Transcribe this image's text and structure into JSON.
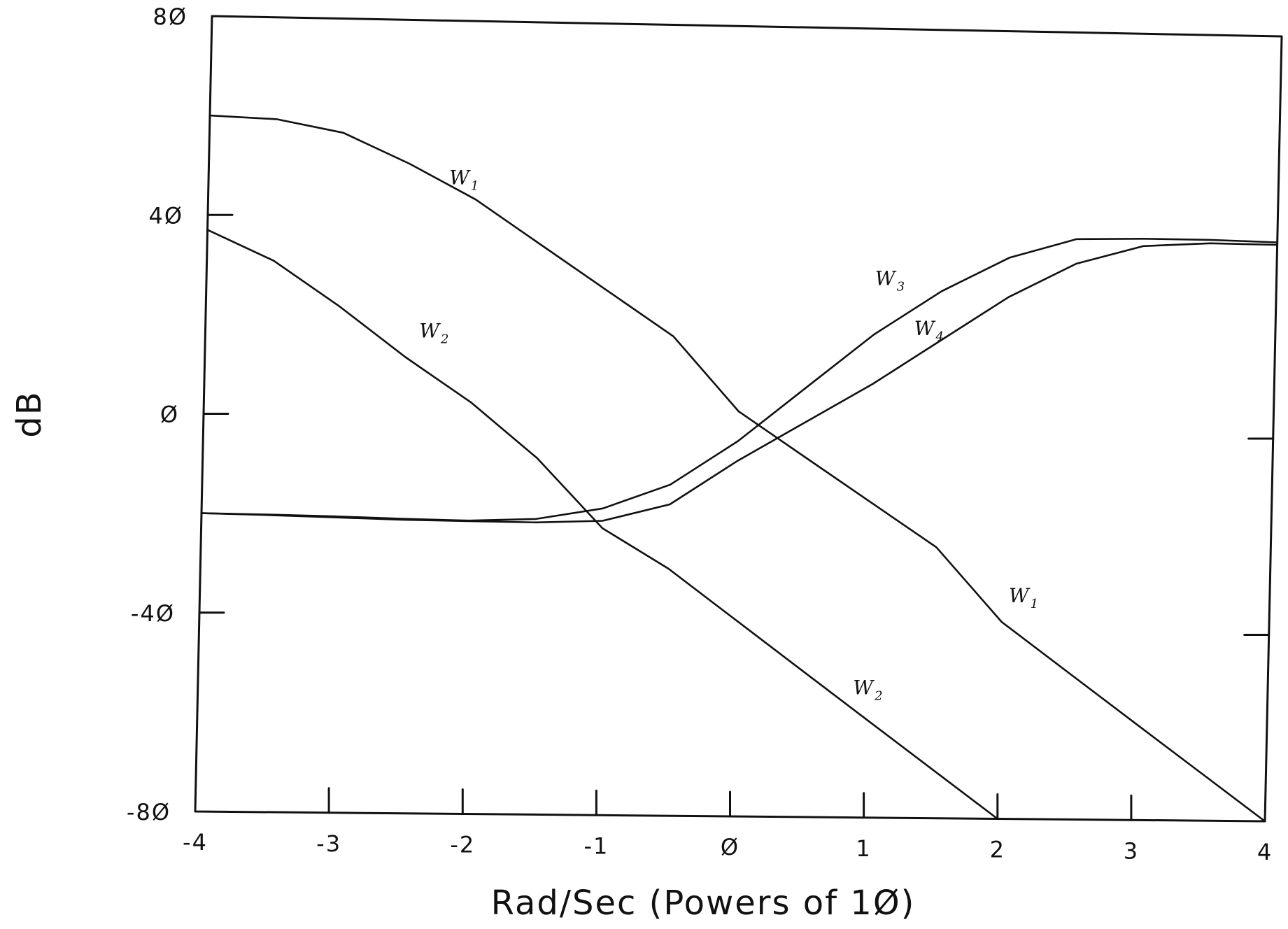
{
  "chart_data": {
    "type": "line",
    "title": "",
    "xlabel": "Rad/Sec (Powers of 1Ø)",
    "ylabel": "dB",
    "xlim": [
      -4,
      4
    ],
    "ylim": [
      -80,
      80
    ],
    "xticks": [
      -4,
      -3,
      -2,
      -1,
      0,
      1,
      2,
      3,
      4
    ],
    "xtick_labels": [
      "-4",
      "-3",
      "-2",
      "-1",
      "Ø",
      "1",
      "2",
      "3",
      "4"
    ],
    "yticks": [
      80,
      40,
      0,
      -40,
      -80
    ],
    "ytick_labels": [
      "8Ø",
      "4Ø",
      "Ø",
      "-4Ø",
      "-8Ø"
    ],
    "grid": false,
    "legend": "none",
    "series": [
      {
        "name": "W1",
        "x": [
          -4,
          -3.5,
          -3,
          -2.5,
          -2,
          -1.5,
          -1,
          -0.5,
          0,
          0.5,
          1,
          1.5,
          2,
          2.5,
          3,
          3.5,
          4
        ],
        "y": [
          60,
          59.5,
          57,
          51,
          44,
          35,
          26,
          17,
          2,
          -7,
          -16,
          -25,
          -40,
          -50,
          -60,
          -70,
          -80
        ]
      },
      {
        "name": "W2",
        "x": [
          -4,
          -3.5,
          -3,
          -2.5,
          -2,
          -1.5,
          -1,
          -0.5,
          0,
          0.5,
          1,
          1.5,
          2
        ],
        "y": [
          37,
          31,
          22,
          12,
          3,
          -8,
          -22,
          -30,
          -40,
          -50,
          -60,
          -70,
          -80
        ]
      },
      {
        "name": "W3",
        "x": [
          -4,
          -3.5,
          -3,
          -2.5,
          -2,
          -1.5,
          -1,
          -0.5,
          0,
          0.5,
          1,
          1.5,
          2,
          2.5,
          3,
          3.5,
          4
        ],
        "y": [
          -20,
          -20.1,
          -20.3,
          -20.6,
          -20.8,
          -20.3,
          -18,
          -13,
          -4,
          7,
          18,
          27,
          34,
          38,
          38.3,
          38.3,
          38
        ]
      },
      {
        "name": "W4",
        "x": [
          -4,
          -3.5,
          -3,
          -2.5,
          -2,
          -1.5,
          -1,
          -0.5,
          0,
          0.5,
          1,
          1.5,
          2,
          2.5,
          3,
          3.5,
          4
        ],
        "y": [
          -20,
          -20.2,
          -20.5,
          -20.8,
          -20.9,
          -21,
          -20.5,
          -17,
          -8,
          0,
          8,
          17,
          26,
          33,
          36.8,
          37.6,
          37.5
        ]
      }
    ],
    "annotations": [
      {
        "series": "W1",
        "label": "W",
        "sub": "1",
        "x": -2.2,
        "y": 47
      },
      {
        "series": "W2",
        "label": "W",
        "sub": "2",
        "x": -2.4,
        "y": 16
      },
      {
        "series": "W3",
        "label": "W",
        "sub": "3",
        "x": 1.0,
        "y": 28
      },
      {
        "series": "W4",
        "label": "W",
        "sub": "4",
        "x": 1.3,
        "y": 18
      },
      {
        "series": "W1",
        "label": "W",
        "sub": "1",
        "x": 2.05,
        "y": -36
      },
      {
        "series": "W2",
        "label": "W",
        "sub": "2",
        "x": 0.9,
        "y": -55
      }
    ]
  }
}
